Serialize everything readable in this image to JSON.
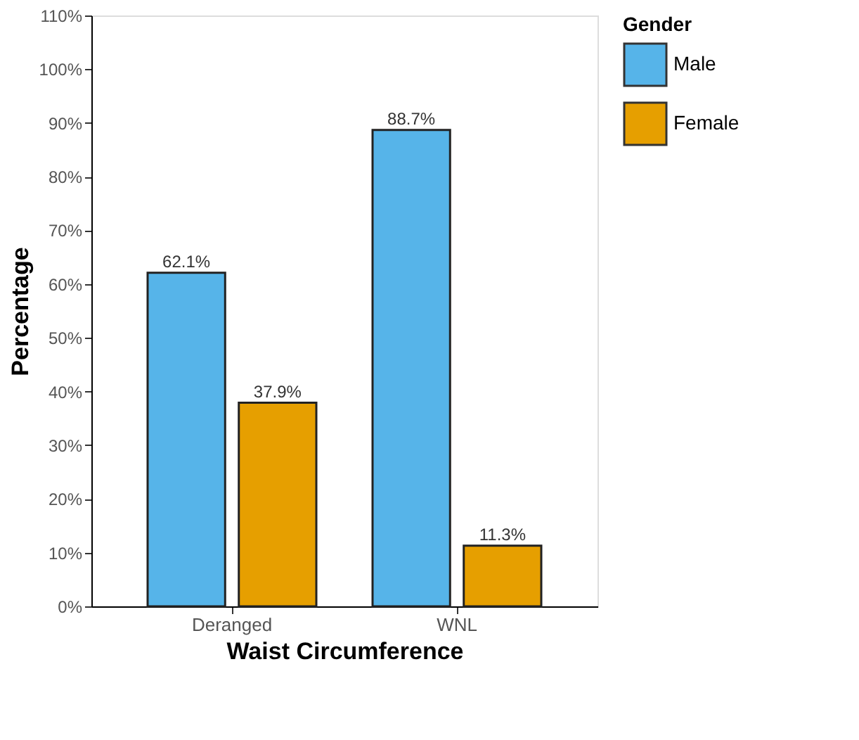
{
  "chart_data": {
    "type": "bar",
    "xlabel": "Waist Circumference",
    "ylabel": "Percentage",
    "legend_title": "Gender",
    "legend": "right",
    "grid": false,
    "categories": [
      "Deranged",
      "WNL"
    ],
    "series": [
      {
        "name": "Male",
        "color": "#56b4e9",
        "values": [
          62.1,
          88.7
        ],
        "value_labels": [
          "62.1%",
          "88.7%"
        ]
      },
      {
        "name": "Female",
        "color": "#e69f00",
        "values": [
          37.9,
          11.3
        ],
        "value_labels": [
          "37.9%",
          "11.3%"
        ]
      }
    ],
    "ylim": [
      0,
      110
    ],
    "yticks": [
      {
        "value": 0,
        "label": "0%"
      },
      {
        "value": 10,
        "label": "10%"
      },
      {
        "value": 20,
        "label": "20%"
      },
      {
        "value": 30,
        "label": "30%"
      },
      {
        "value": 40,
        "label": "40%"
      },
      {
        "value": 50,
        "label": "50%"
      },
      {
        "value": 60,
        "label": "60%"
      },
      {
        "value": 70,
        "label": "70%"
      },
      {
        "value": 80,
        "label": "80%"
      },
      {
        "value": 90,
        "label": "90%"
      },
      {
        "value": 100,
        "label": "100%"
      },
      {
        "value": 110,
        "label": "110%"
      }
    ]
  }
}
